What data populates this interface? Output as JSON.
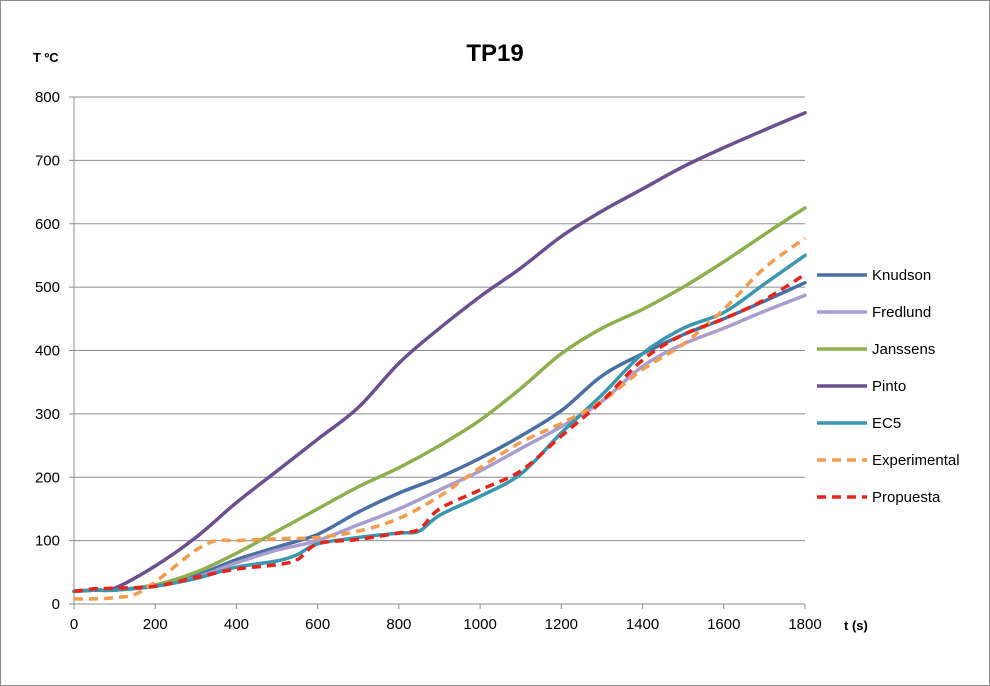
{
  "chart_data": {
    "type": "line",
    "title": "TP19",
    "xlabel": "t (s)",
    "ylabel": "T ºC",
    "xlim": [
      0,
      1800
    ],
    "ylim": [
      0,
      800
    ],
    "xticks": [
      0,
      200,
      400,
      600,
      800,
      1000,
      1200,
      1400,
      1600,
      1800
    ],
    "yticks": [
      0,
      100,
      200,
      300,
      400,
      500,
      600,
      700,
      800
    ],
    "grid": "horizontal",
    "legend_position": "right",
    "series": [
      {
        "name": "Knudson",
        "color": "#4a6fa5",
        "dash": false,
        "points": [
          [
            0,
            20
          ],
          [
            50,
            22
          ],
          [
            100,
            22
          ],
          [
            200,
            30
          ],
          [
            300,
            45
          ],
          [
            400,
            70
          ],
          [
            500,
            90
          ],
          [
            600,
            110
          ],
          [
            700,
            145
          ],
          [
            800,
            175
          ],
          [
            900,
            200
          ],
          [
            1000,
            230
          ],
          [
            1100,
            265
          ],
          [
            1200,
            305
          ],
          [
            1300,
            360
          ],
          [
            1400,
            395
          ],
          [
            1500,
            425
          ],
          [
            1600,
            450
          ],
          [
            1700,
            478
          ],
          [
            1800,
            507
          ]
        ]
      },
      {
        "name": "Fredlund",
        "color": "#a99ccf",
        "dash": false,
        "points": [
          [
            0,
            20
          ],
          [
            50,
            22
          ],
          [
            100,
            22
          ],
          [
            200,
            28
          ],
          [
            300,
            42
          ],
          [
            400,
            65
          ],
          [
            500,
            85
          ],
          [
            600,
            100
          ],
          [
            700,
            125
          ],
          [
            800,
            150
          ],
          [
            900,
            180
          ],
          [
            1000,
            210
          ],
          [
            1100,
            245
          ],
          [
            1200,
            280
          ],
          [
            1300,
            320
          ],
          [
            1400,
            375
          ],
          [
            1500,
            410
          ],
          [
            1600,
            435
          ],
          [
            1700,
            462
          ],
          [
            1800,
            487
          ]
        ]
      },
      {
        "name": "Janssens",
        "color": "#8cb04e",
        "dash": false,
        "points": [
          [
            0,
            20
          ],
          [
            50,
            22
          ],
          [
            100,
            22
          ],
          [
            200,
            30
          ],
          [
            300,
            50
          ],
          [
            400,
            80
          ],
          [
            500,
            115
          ],
          [
            600,
            150
          ],
          [
            700,
            185
          ],
          [
            800,
            215
          ],
          [
            900,
            250
          ],
          [
            1000,
            290
          ],
          [
            1100,
            340
          ],
          [
            1200,
            395
          ],
          [
            1300,
            435
          ],
          [
            1400,
            465
          ],
          [
            1500,
            500
          ],
          [
            1600,
            540
          ],
          [
            1700,
            583
          ],
          [
            1800,
            625
          ]
        ]
      },
      {
        "name": "Pinto",
        "color": "#6b4f8e",
        "dash": false,
        "points": [
          [
            0,
            20
          ],
          [
            50,
            22
          ],
          [
            100,
            25
          ],
          [
            200,
            60
          ],
          [
            300,
            105
          ],
          [
            400,
            160
          ],
          [
            500,
            210
          ],
          [
            600,
            260
          ],
          [
            700,
            310
          ],
          [
            800,
            380
          ],
          [
            900,
            435
          ],
          [
            1000,
            485
          ],
          [
            1100,
            530
          ],
          [
            1200,
            580
          ],
          [
            1300,
            620
          ],
          [
            1400,
            655
          ],
          [
            1500,
            690
          ],
          [
            1600,
            720
          ],
          [
            1700,
            748
          ],
          [
            1800,
            775
          ]
        ]
      },
      {
        "name": "EC5",
        "color": "#3a97b0",
        "dash": false,
        "points": [
          [
            0,
            20
          ],
          [
            50,
            22
          ],
          [
            100,
            22
          ],
          [
            200,
            28
          ],
          [
            300,
            40
          ],
          [
            400,
            58
          ],
          [
            500,
            68
          ],
          [
            550,
            78
          ],
          [
            600,
            95
          ],
          [
            700,
            105
          ],
          [
            800,
            112
          ],
          [
            850,
            115
          ],
          [
            900,
            140
          ],
          [
            1000,
            170
          ],
          [
            1100,
            205
          ],
          [
            1200,
            270
          ],
          [
            1300,
            330
          ],
          [
            1400,
            395
          ],
          [
            1500,
            435
          ],
          [
            1600,
            460
          ],
          [
            1700,
            505
          ],
          [
            1800,
            550
          ]
        ]
      },
      {
        "name": "Experimental",
        "color": "#f39c4e",
        "dash": true,
        "points": [
          [
            0,
            8
          ],
          [
            50,
            8
          ],
          [
            100,
            10
          ],
          [
            150,
            15
          ],
          [
            200,
            35
          ],
          [
            250,
            60
          ],
          [
            300,
            85
          ],
          [
            350,
            100
          ],
          [
            400,
            100
          ],
          [
            500,
            103
          ],
          [
            600,
            105
          ],
          [
            700,
            115
          ],
          [
            800,
            135
          ],
          [
            900,
            170
          ],
          [
            1000,
            215
          ],
          [
            1100,
            255
          ],
          [
            1200,
            285
          ],
          [
            1300,
            320
          ],
          [
            1400,
            370
          ],
          [
            1500,
            410
          ],
          [
            1600,
            465
          ],
          [
            1700,
            530
          ],
          [
            1800,
            577
          ]
        ]
      },
      {
        "name": "Propuesta",
        "color": "#e8231c",
        "dash": true,
        "points": [
          [
            0,
            20
          ],
          [
            50,
            24
          ],
          [
            100,
            25
          ],
          [
            200,
            28
          ],
          [
            300,
            42
          ],
          [
            400,
            55
          ],
          [
            500,
            62
          ],
          [
            550,
            70
          ],
          [
            600,
            95
          ],
          [
            700,
            102
          ],
          [
            800,
            112
          ],
          [
            850,
            118
          ],
          [
            900,
            150
          ],
          [
            1000,
            180
          ],
          [
            1100,
            210
          ],
          [
            1200,
            265
          ],
          [
            1300,
            320
          ],
          [
            1400,
            385
          ],
          [
            1500,
            425
          ],
          [
            1600,
            450
          ],
          [
            1700,
            480
          ],
          [
            1800,
            520
          ]
        ]
      }
    ]
  }
}
